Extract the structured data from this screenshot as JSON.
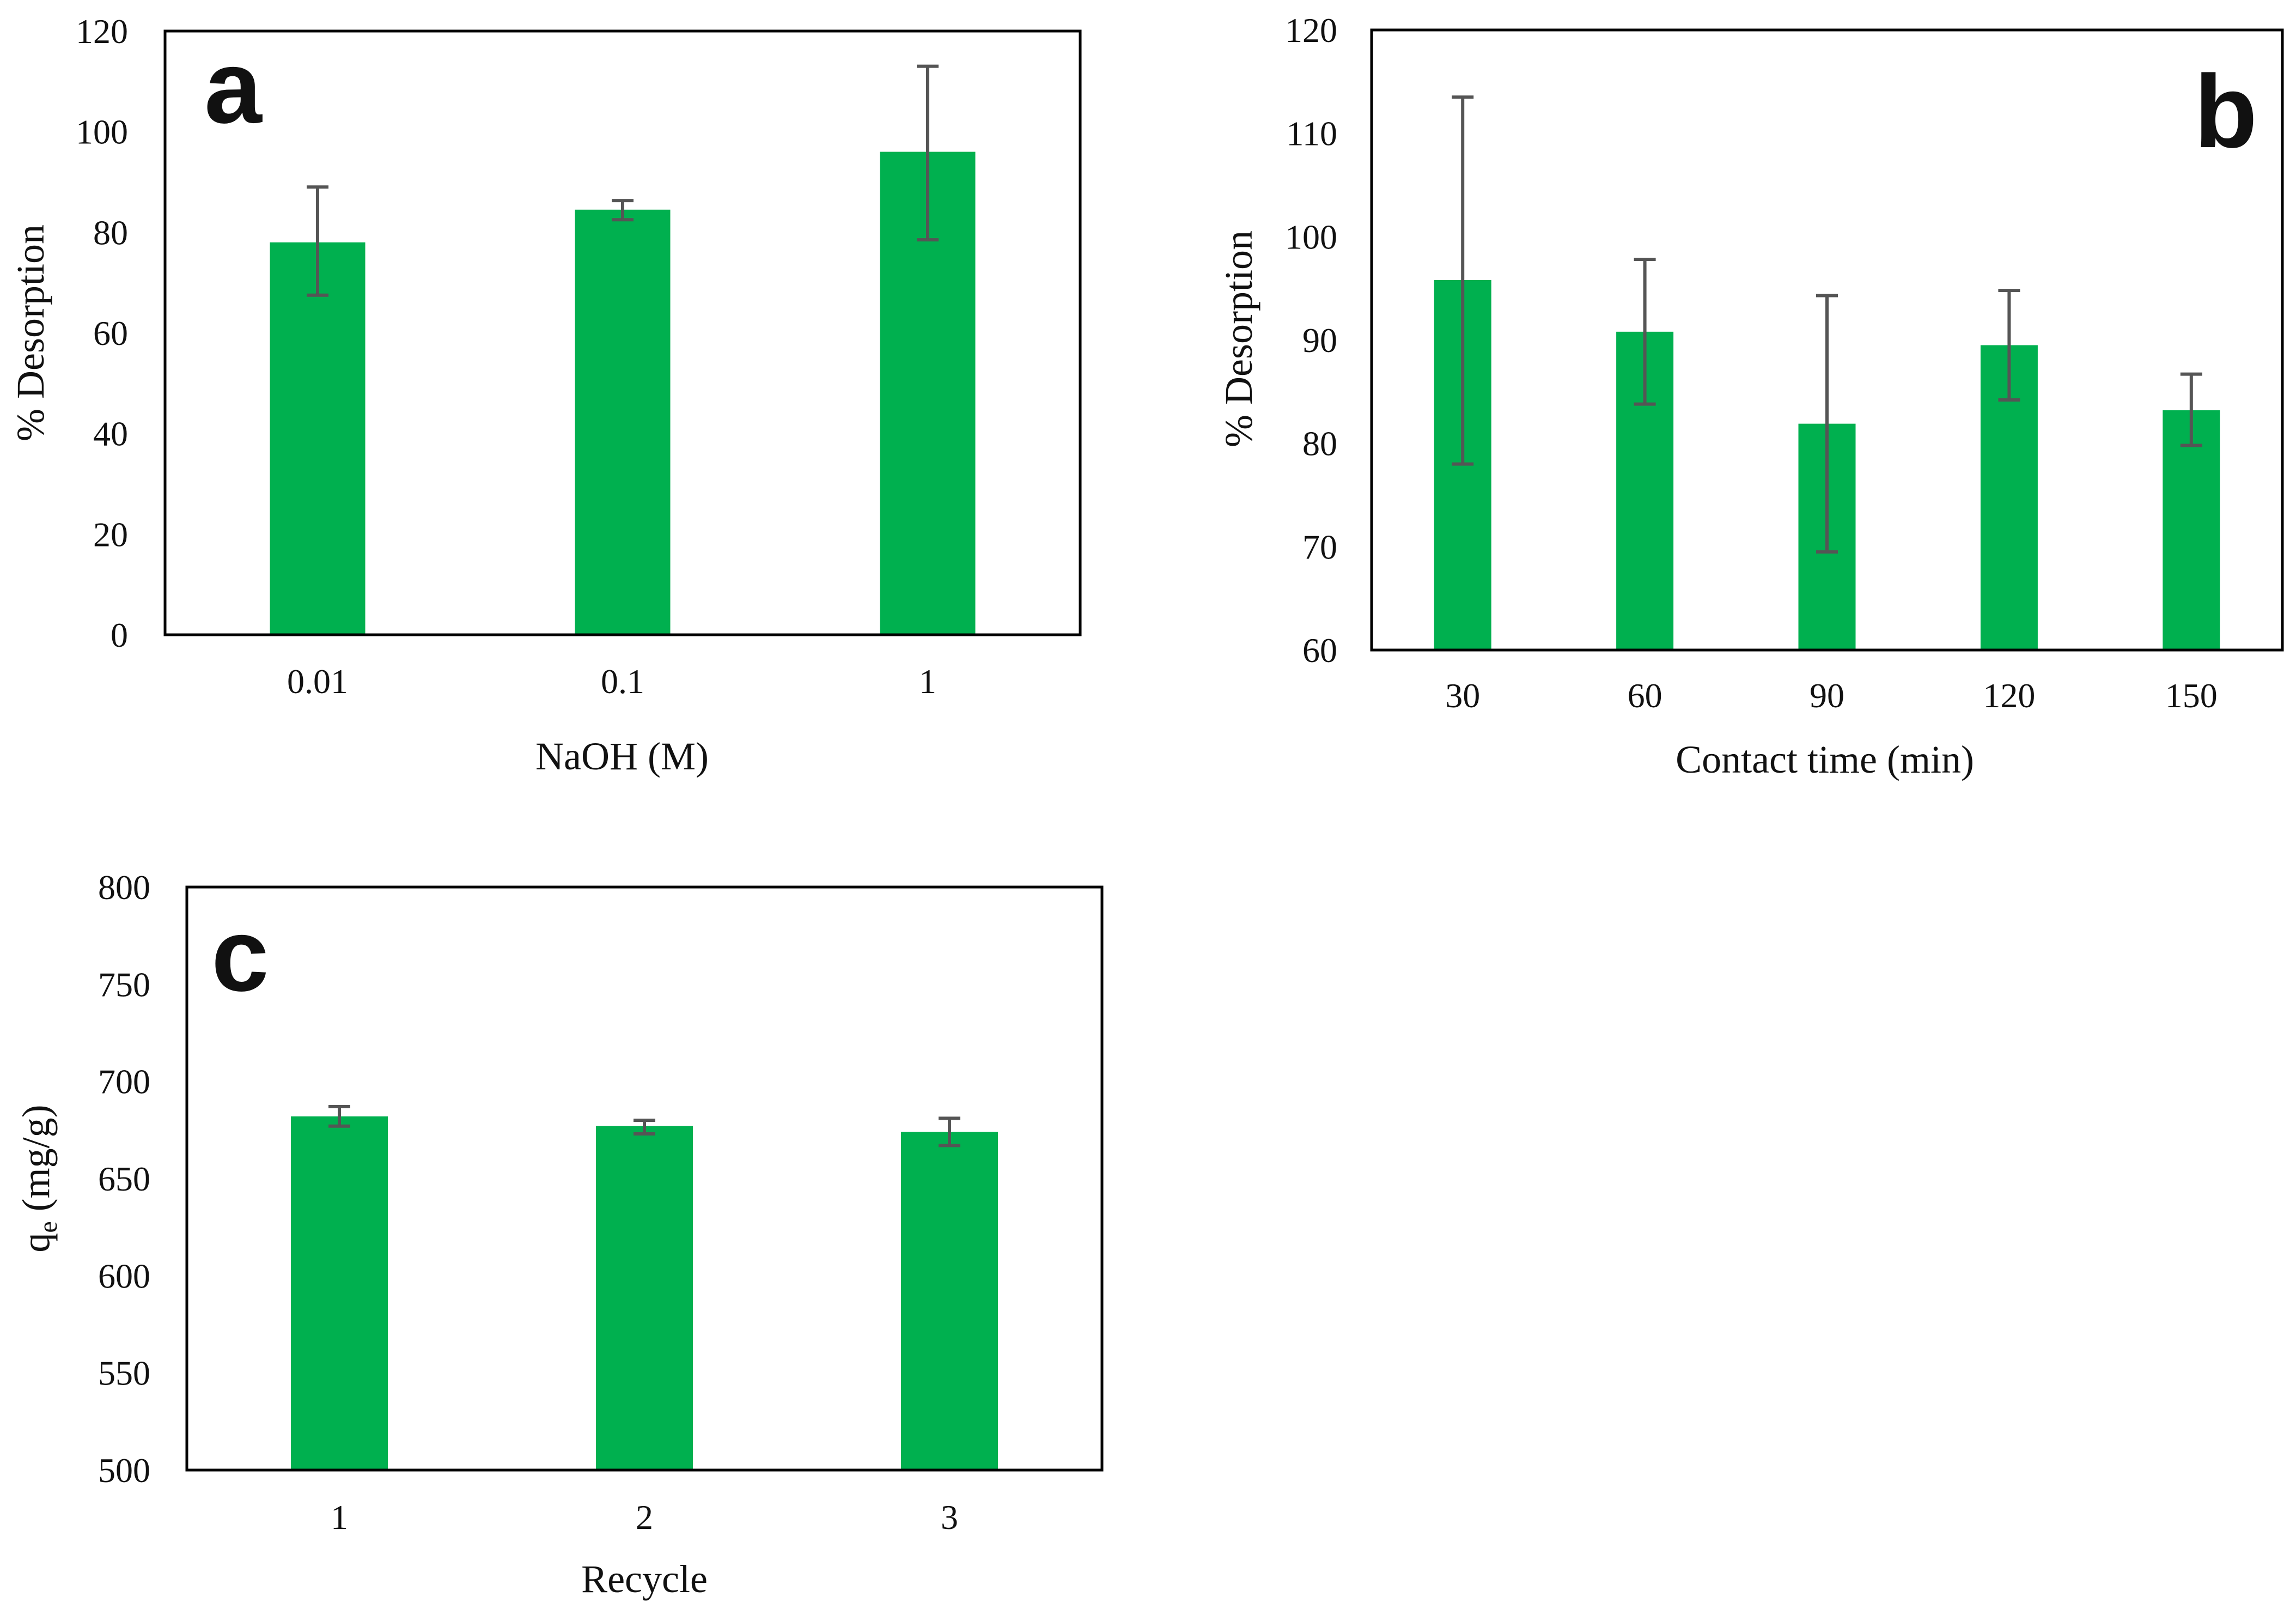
{
  "figure": {
    "bar_color": "#00b04f",
    "error_color": "#555555",
    "frame_color": "#000000"
  },
  "chart_data": [
    {
      "panel": "a",
      "type": "bar",
      "categories": [
        "0.01",
        "0.1",
        "1"
      ],
      "values": [
        78,
        84.5,
        96
      ],
      "errors": [
        [
          67.5,
          89
        ],
        [
          82.5,
          86.3
        ],
        [
          78.5,
          113
        ]
      ],
      "xlabel": "NaOH (M)",
      "ylabel": "% Desorption",
      "ylim": [
        0,
        120
      ],
      "yticks": [
        0,
        20,
        40,
        60,
        80,
        100,
        120
      ],
      "ytick_labels": [
        "0",
        "20",
        "40",
        "60",
        "80",
        "100",
        "120"
      ],
      "grid": false
    },
    {
      "panel": "b",
      "type": "bar",
      "categories": [
        "30",
        "60",
        "90",
        "120",
        "150"
      ],
      "values": [
        95.8,
        90.8,
        81.9,
        89.5,
        83.2
      ],
      "errors": [
        [
          78,
          113.5
        ],
        [
          83.8,
          97.8
        ],
        [
          69.5,
          94.3
        ],
        [
          84.2,
          94.8
        ],
        [
          79.8,
          86.7
        ]
      ],
      "xlabel": "Contact time (min)",
      "ylabel": "% Desorption",
      "ylim": [
        60,
        120
      ],
      "yticks": [
        60,
        70,
        80,
        90,
        100,
        110,
        120
      ],
      "ytick_labels": [
        "60",
        "70",
        "80",
        "90",
        "100",
        "110",
        "120"
      ],
      "grid": false
    },
    {
      "panel": "c",
      "type": "bar",
      "categories": [
        "1",
        "2",
        "3"
      ],
      "values": [
        682,
        677,
        674
      ],
      "errors": [
        [
          677,
          687
        ],
        [
          673,
          680
        ],
        [
          667,
          681
        ]
      ],
      "xlabel": "Recycle",
      "ylabel_main": "q",
      "ylabel_sub": "e",
      "ylabel_units": " (mg/g)",
      "ylim": [
        500,
        800
      ],
      "yticks": [
        500,
        550,
        600,
        650,
        700,
        750,
        800
      ],
      "ytick_labels": [
        "500",
        "550",
        "600",
        "650",
        "700",
        "750",
        "800"
      ],
      "grid": false
    }
  ]
}
